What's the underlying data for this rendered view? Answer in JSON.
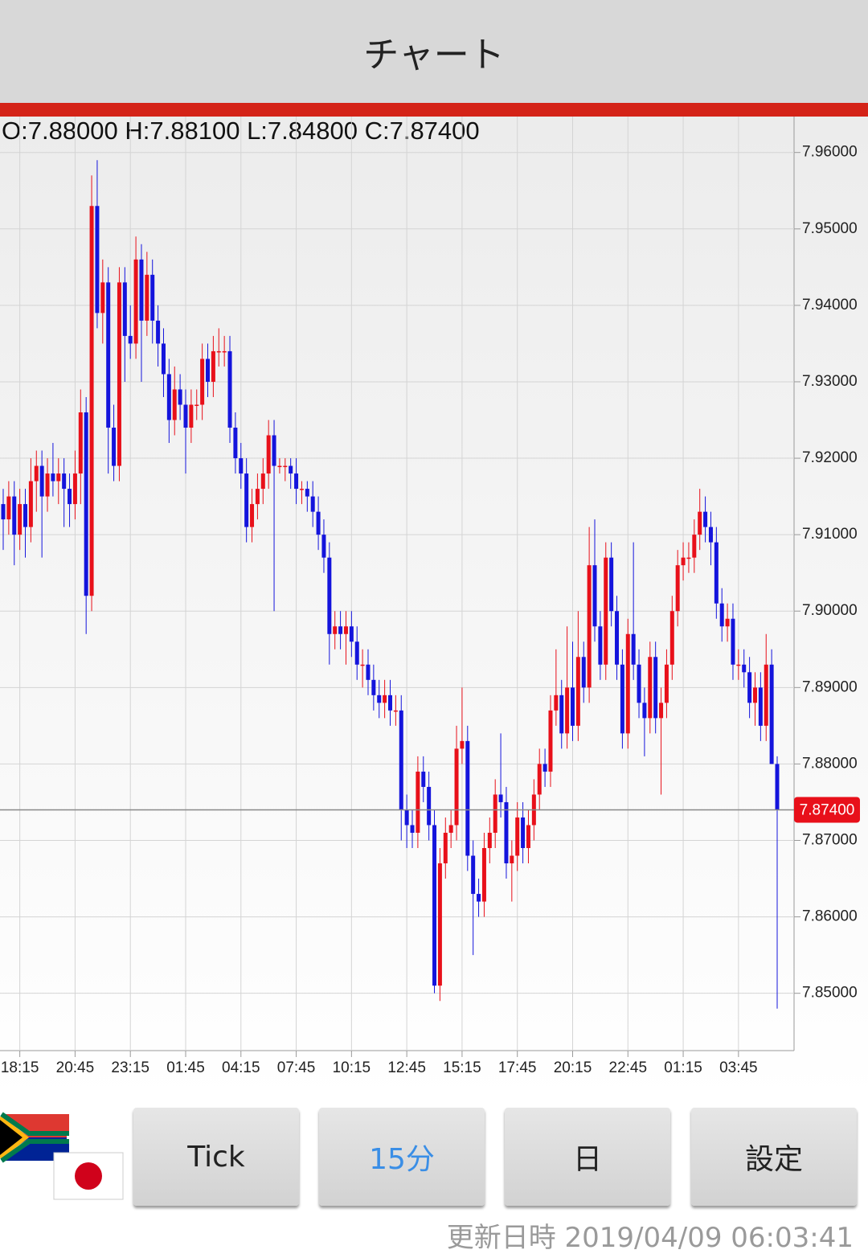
{
  "header": {
    "title": "チャート"
  },
  "chart_data": {
    "type": "candlestick",
    "ohlc_label": "O:7.88000 H:7.88100 L:7.84800 C:7.87400",
    "up_color": "#e8101a",
    "down_color": "#1414dc",
    "ylim": [
      7.8425,
      7.9647
    ],
    "yticks": [
      {
        "value": 7.85,
        "label": "7.85000"
      },
      {
        "value": 7.86,
        "label": "7.86000"
      },
      {
        "value": 7.87,
        "label": "7.87000"
      },
      {
        "value": 7.88,
        "label": "7.88000"
      },
      {
        "value": 7.89,
        "label": "7.89000"
      },
      {
        "value": 7.9,
        "label": "7.90000"
      },
      {
        "value": 7.91,
        "label": "7.91000"
      },
      {
        "value": 7.92,
        "label": "7.92000"
      },
      {
        "value": 7.93,
        "label": "7.93000"
      },
      {
        "value": 7.94,
        "label": "7.94000"
      },
      {
        "value": 7.95,
        "label": "7.95000"
      },
      {
        "value": 7.96,
        "label": "7.96000"
      }
    ],
    "grid": true,
    "last_price": {
      "value": 7.874,
      "label": "7.87400"
    },
    "categories": [
      null,
      null,
      null,
      "18:15",
      null,
      null,
      null,
      null,
      null,
      null,
      null,
      null,
      null,
      "20:45",
      null,
      null,
      null,
      null,
      null,
      null,
      null,
      null,
      null,
      "23:15",
      null,
      null,
      null,
      null,
      null,
      null,
      null,
      null,
      null,
      "01:45",
      null,
      null,
      null,
      null,
      null,
      null,
      null,
      null,
      null,
      "04:15",
      null,
      null,
      null,
      null,
      null,
      null,
      null,
      null,
      null,
      "07:45",
      null,
      null,
      null,
      null,
      null,
      null,
      null,
      null,
      null,
      "10:15",
      null,
      null,
      null,
      null,
      null,
      null,
      null,
      null,
      null,
      "12:45",
      null,
      null,
      null,
      null,
      null,
      null,
      null,
      null,
      null,
      "15:15",
      null,
      null,
      null,
      null,
      null,
      null,
      null,
      null,
      null,
      "17:45",
      null,
      null,
      null,
      null,
      null,
      null,
      null,
      null,
      null,
      "20:15",
      null,
      null,
      null,
      null,
      null,
      null,
      null,
      null,
      null,
      "22:45",
      null,
      null,
      null,
      null,
      null,
      null,
      null,
      null,
      null,
      "01:15",
      null,
      null,
      null,
      null,
      null,
      null,
      null,
      null,
      null,
      "03:45",
      null,
      null,
      null,
      null,
      null,
      null,
      null
    ],
    "candles": [
      [
        7.914,
        7.916,
        7.908,
        7.912
      ],
      [
        7.912,
        7.917,
        7.91,
        7.915
      ],
      [
        7.915,
        7.917,
        7.906,
        7.91
      ],
      [
        7.91,
        7.916,
        7.908,
        7.914
      ],
      [
        7.914,
        7.916,
        7.907,
        7.911
      ],
      [
        7.911,
        7.92,
        7.909,
        7.917
      ],
      [
        7.917,
        7.921,
        7.913,
        7.919
      ],
      [
        7.919,
        7.921,
        7.907,
        7.915
      ],
      [
        7.915,
        7.92,
        7.913,
        7.918
      ],
      [
        7.918,
        7.922,
        7.915,
        7.917
      ],
      [
        7.917,
        7.92,
        7.914,
        7.918
      ],
      [
        7.918,
        7.92,
        7.911,
        7.916
      ],
      [
        7.916,
        7.918,
        7.911,
        7.914
      ],
      [
        7.914,
        7.921,
        7.912,
        7.918
      ],
      [
        7.918,
        7.929,
        7.914,
        7.926
      ],
      [
        7.926,
        7.928,
        7.897,
        7.902
      ],
      [
        7.902,
        7.957,
        7.9,
        7.953
      ],
      [
        7.953,
        7.959,
        7.937,
        7.939
      ],
      [
        7.939,
        7.946,
        7.935,
        7.943
      ],
      [
        7.943,
        7.945,
        7.918,
        7.924
      ],
      [
        7.924,
        7.927,
        7.917,
        7.919
      ],
      [
        7.919,
        7.945,
        7.917,
        7.943
      ],
      [
        7.943,
        7.945,
        7.93,
        7.936
      ],
      [
        7.936,
        7.94,
        7.933,
        7.935
      ],
      [
        7.935,
        7.949,
        7.933,
        7.946
      ],
      [
        7.946,
        7.948,
        7.93,
        7.938
      ],
      [
        7.938,
        7.947,
        7.936,
        7.944
      ],
      [
        7.944,
        7.946,
        7.935,
        7.938
      ],
      [
        7.938,
        7.94,
        7.932,
        7.935
      ],
      [
        7.935,
        7.937,
        7.928,
        7.931
      ],
      [
        7.931,
        7.933,
        7.922,
        7.925
      ],
      [
        7.925,
        7.932,
        7.923,
        7.929
      ],
      [
        7.929,
        7.931,
        7.925,
        7.927
      ],
      [
        7.927,
        7.929,
        7.918,
        7.924
      ],
      [
        7.924,
        7.929,
        7.922,
        7.927
      ],
      [
        7.927,
        7.929,
        7.925,
        7.927
      ],
      [
        7.927,
        7.935,
        7.925,
        7.933
      ],
      [
        7.933,
        7.935,
        7.928,
        7.93
      ],
      [
        7.93,
        7.936,
        7.928,
        7.934
      ],
      [
        7.934,
        7.937,
        7.932,
        7.934
      ],
      [
        7.934,
        7.936,
        7.932,
        7.934
      ],
      [
        7.934,
        7.936,
        7.922,
        7.924
      ],
      [
        7.924,
        7.926,
        7.918,
        7.92
      ],
      [
        7.92,
        7.922,
        7.916,
        7.918
      ],
      [
        7.918,
        7.92,
        7.909,
        7.911
      ],
      [
        7.911,
        7.916,
        7.909,
        7.914
      ],
      [
        7.914,
        7.918,
        7.912,
        7.916
      ],
      [
        7.916,
        7.92,
        7.914,
        7.918
      ],
      [
        7.918,
        7.925,
        7.916,
        7.923
      ],
      [
        7.923,
        7.925,
        7.9,
        7.919
      ],
      [
        7.919,
        7.92,
        7.918,
        7.919
      ],
      [
        7.919,
        7.92,
        7.917,
        7.919
      ],
      [
        7.919,
        7.92,
        7.916,
        7.918
      ],
      [
        7.918,
        7.92,
        7.914,
        7.916
      ],
      [
        7.916,
        7.917,
        7.914,
        7.916
      ],
      [
        7.916,
        7.917,
        7.913,
        7.915
      ],
      [
        7.915,
        7.917,
        7.911,
        7.913
      ],
      [
        7.913,
        7.915,
        7.908,
        7.91
      ],
      [
        7.91,
        7.912,
        7.905,
        7.907
      ],
      [
        7.907,
        7.909,
        7.893,
        7.897
      ],
      [
        7.897,
        7.9,
        7.895,
        7.898
      ],
      [
        7.898,
        7.9,
        7.895,
        7.897
      ],
      [
        7.897,
        7.9,
        7.893,
        7.898
      ],
      [
        7.898,
        7.9,
        7.894,
        7.896
      ],
      [
        7.896,
        7.898,
        7.891,
        7.893
      ],
      [
        7.893,
        7.895,
        7.89,
        7.893
      ],
      [
        7.893,
        7.895,
        7.889,
        7.891
      ],
      [
        7.891,
        7.893,
        7.887,
        7.889
      ],
      [
        7.889,
        7.891,
        7.886,
        7.888
      ],
      [
        7.888,
        7.891,
        7.886,
        7.889
      ],
      [
        7.889,
        7.891,
        7.885,
        7.887
      ],
      [
        7.887,
        7.889,
        7.885,
        7.887
      ],
      [
        7.887,
        7.889,
        7.87,
        7.874
      ],
      [
        7.874,
        7.876,
        7.869,
        7.872
      ],
      [
        7.872,
        7.874,
        7.869,
        7.871
      ],
      [
        7.871,
        7.881,
        7.869,
        7.879
      ],
      [
        7.879,
        7.881,
        7.875,
        7.877
      ],
      [
        7.877,
        7.879,
        7.87,
        7.872
      ],
      [
        7.872,
        7.874,
        7.85,
        7.851
      ],
      [
        7.851,
        7.869,
        7.849,
        7.867
      ],
      [
        7.867,
        7.873,
        7.865,
        7.871
      ],
      [
        7.871,
        7.874,
        7.869,
        7.872
      ],
      [
        7.872,
        7.885,
        7.87,
        7.882
      ],
      [
        7.882,
        7.89,
        7.88,
        7.883
      ],
      [
        7.883,
        7.885,
        7.866,
        7.868
      ],
      [
        7.868,
        7.87,
        7.855,
        7.863
      ],
      [
        7.863,
        7.865,
        7.86,
        7.862
      ],
      [
        7.862,
        7.871,
        7.86,
        7.869
      ],
      [
        7.869,
        7.873,
        7.867,
        7.871
      ],
      [
        7.871,
        7.878,
        7.869,
        7.876
      ],
      [
        7.876,
        7.884,
        7.873,
        7.875
      ],
      [
        7.875,
        7.877,
        7.865,
        7.867
      ],
      [
        7.867,
        7.87,
        7.862,
        7.868
      ],
      [
        7.868,
        7.875,
        7.866,
        7.873
      ],
      [
        7.873,
        7.875,
        7.867,
        7.869
      ],
      [
        7.869,
        7.874,
        7.867,
        7.872
      ],
      [
        7.872,
        7.878,
        7.87,
        7.876
      ],
      [
        7.876,
        7.882,
        7.874,
        7.88
      ],
      [
        7.88,
        7.882,
        7.877,
        7.879
      ],
      [
        7.879,
        7.889,
        7.877,
        7.887
      ],
      [
        7.887,
        7.895,
        7.885,
        7.889
      ],
      [
        7.889,
        7.891,
        7.882,
        7.884
      ],
      [
        7.884,
        7.898,
        7.882,
        7.89
      ],
      [
        7.89,
        7.896,
        7.883,
        7.885
      ],
      [
        7.885,
        7.9,
        7.883,
        7.894
      ],
      [
        7.894,
        7.896,
        7.888,
        7.89
      ],
      [
        7.89,
        7.911,
        7.888,
        7.906
      ],
      [
        7.906,
        7.912,
        7.896,
        7.898
      ],
      [
        7.898,
        7.9,
        7.891,
        7.893
      ],
      [
        7.893,
        7.909,
        7.891,
        7.907
      ],
      [
        7.907,
        7.909,
        7.898,
        7.9
      ],
      [
        7.9,
        7.902,
        7.891,
        7.893
      ],
      [
        7.893,
        7.895,
        7.882,
        7.884
      ],
      [
        7.884,
        7.899,
        7.882,
        7.897
      ],
      [
        7.897,
        7.909,
        7.891,
        7.893
      ],
      [
        7.893,
        7.895,
        7.886,
        7.888
      ],
      [
        7.888,
        7.89,
        7.881,
        7.886
      ],
      [
        7.886,
        7.896,
        7.884,
        7.894
      ],
      [
        7.894,
        7.896,
        7.884,
        7.886
      ],
      [
        7.886,
        7.89,
        7.876,
        7.888
      ],
      [
        7.888,
        7.895,
        7.886,
        7.893
      ],
      [
        7.893,
        7.902,
        7.891,
        7.9
      ],
      [
        7.9,
        7.908,
        7.898,
        7.906
      ],
      [
        7.906,
        7.909,
        7.904,
        7.907
      ],
      [
        7.907,
        7.909,
        7.905,
        7.907
      ],
      [
        7.907,
        7.912,
        7.905,
        7.91
      ],
      [
        7.91,
        7.916,
        7.908,
        7.913
      ],
      [
        7.913,
        7.915,
        7.909,
        7.911
      ],
      [
        7.911,
        7.913,
        7.906,
        7.909
      ],
      [
        7.909,
        7.911,
        7.899,
        7.901
      ],
      [
        7.901,
        7.903,
        7.896,
        7.898
      ],
      [
        7.898,
        7.901,
        7.896,
        7.899
      ],
      [
        7.899,
        7.901,
        7.891,
        7.893
      ],
      [
        7.893,
        7.895,
        7.891,
        7.893
      ],
      [
        7.893,
        7.895,
        7.89,
        7.892
      ],
      [
        7.892,
        7.894,
        7.886,
        7.888
      ],
      [
        7.888,
        7.892,
        7.885,
        7.89
      ],
      [
        7.89,
        7.892,
        7.883,
        7.885
      ],
      [
        7.885,
        7.897,
        7.883,
        7.893
      ],
      [
        7.893,
        7.895,
        7.88,
        7.88
      ],
      [
        7.88,
        7.881,
        7.848,
        7.874
      ]
    ]
  },
  "buttons": [
    "Tick",
    "15分",
    "日",
    "設定"
  ],
  "footer": {
    "updated": "更新日時 2019/04/09 06:03:41"
  }
}
